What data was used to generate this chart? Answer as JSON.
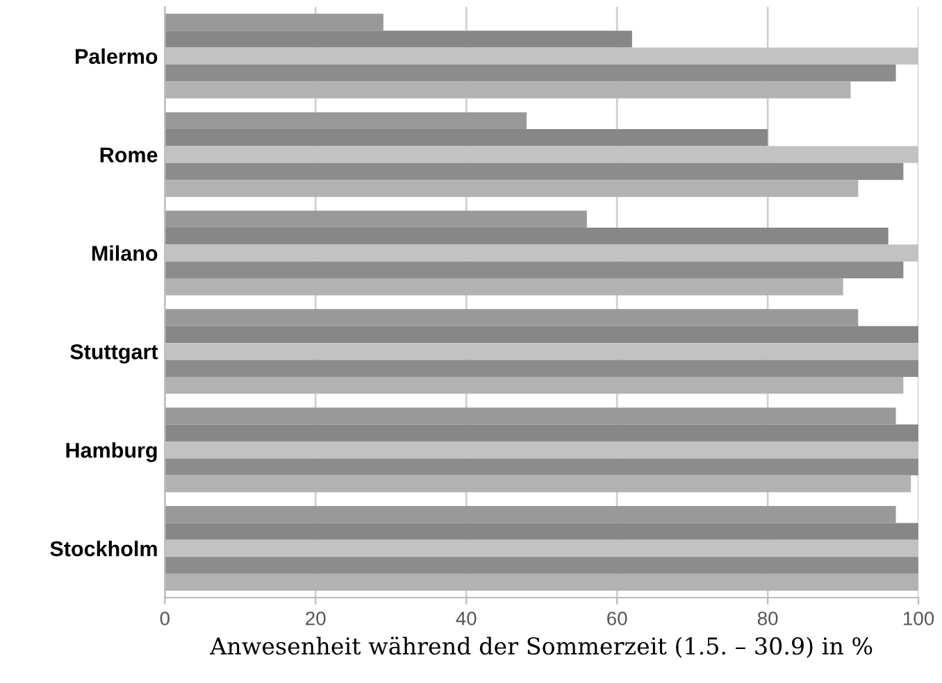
{
  "chart_data": {
    "type": "bar",
    "orientation": "horizontal",
    "xlabel": "Anwesenheit während der Sommerzeit (1.5. – 30.9) in %",
    "categories": [
      "Palermo",
      "Rome",
      "Milano",
      "Stuttgart",
      "Hamburg",
      "Stockholm"
    ],
    "series": [
      {
        "color": "#999999",
        "values": [
          29,
          48,
          56,
          92,
          97,
          97
        ]
      },
      {
        "color": "#878787",
        "values": [
          62,
          80,
          96,
          100,
          100,
          100
        ]
      },
      {
        "color": "#c2c2c2",
        "values": [
          100,
          100,
          100,
          100,
          100,
          100
        ]
      },
      {
        "color": "#8c8c8c",
        "values": [
          97,
          98,
          98,
          100,
          100,
          100
        ]
      },
      {
        "color": "#b2b2b2",
        "values": [
          91,
          92,
          90,
          98,
          99,
          100
        ]
      }
    ],
    "xlim": [
      0,
      100
    ],
    "xticks": [
      0,
      20,
      40,
      60,
      80,
      100
    ],
    "grid": "x",
    "legend": false
  }
}
